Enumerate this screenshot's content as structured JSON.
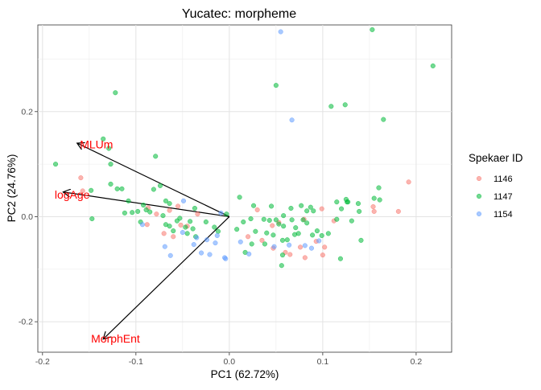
{
  "chart_data": {
    "type": "scatter",
    "title": "Yucatec: morpheme",
    "xlabel": "PC1 (62.72%)",
    "ylabel": "PC2 (24.76%)",
    "xlim": [
      -0.205,
      0.238
    ],
    "ylim": [
      -0.258,
      0.365
    ],
    "xticks": [
      -0.2,
      -0.1,
      0.0,
      0.1,
      0.2
    ],
    "xtick_labels": [
      "-0.2",
      "-0.1",
      "0.0",
      "0.1",
      "0.2"
    ],
    "yticks": [
      -0.2,
      0.0,
      0.2
    ],
    "ytick_labels": [
      "-0.2",
      "0.0",
      "0.2"
    ],
    "grid": true,
    "legend": {
      "title": "Spekaer ID",
      "position": "right",
      "entries": [
        "1146",
        "1147",
        "1154"
      ]
    },
    "series": [
      {
        "name": "1146",
        "color": "#F8766D",
        "points": [
          [
            -0.159,
            0.074
          ],
          [
            -0.157,
            0.049
          ],
          [
            -0.087,
            0.017
          ],
          [
            -0.055,
            0.02
          ],
          [
            -0.088,
            -0.015
          ],
          [
            -0.078,
            0.005
          ],
          [
            -0.052,
            -0.016
          ],
          [
            -0.07,
            -0.032
          ],
          [
            -0.06,
            -0.038
          ],
          [
            -0.034,
            0.005
          ],
          [
            -0.045,
            -0.018
          ],
          [
            -0.064,
            0.012
          ],
          [
            0.03,
            0.013
          ],
          [
            0.046,
            -0.017
          ],
          [
            0.053,
            -0.011
          ],
          [
            0.08,
            -0.005
          ],
          [
            0.035,
            -0.045
          ],
          [
            0.06,
            -0.068
          ],
          [
            0.065,
            -0.072
          ],
          [
            0.076,
            -0.058
          ],
          [
            0.093,
            -0.047
          ],
          [
            0.102,
            -0.058
          ],
          [
            0.047,
            -0.06
          ],
          [
            0.02,
            -0.038
          ],
          [
            0.081,
            -0.078
          ],
          [
            0.1,
            -0.073
          ],
          [
            0.154,
            0.019
          ],
          [
            0.155,
            0.01
          ],
          [
            0.181,
            0.01
          ],
          [
            0.192,
            0.066
          ],
          [
            0.099,
            0.015
          ],
          [
            0.112,
            -0.008
          ]
        ]
      },
      {
        "name": "1147",
        "color": "#00BA38",
        "points": [
          [
            -0.186,
            0.1
          ],
          [
            -0.148,
            0.05
          ],
          [
            -0.147,
            -0.004
          ],
          [
            -0.135,
            0.148
          ],
          [
            -0.129,
            0.13
          ],
          [
            -0.127,
            0.1
          ],
          [
            -0.127,
            0.062
          ],
          [
            -0.122,
            0.236
          ],
          [
            -0.12,
            0.053
          ],
          [
            -0.115,
            0.053
          ],
          [
            -0.108,
            0.03
          ],
          [
            -0.112,
            0.007
          ],
          [
            -0.104,
            0.008
          ],
          [
            -0.098,
            0.01
          ],
          [
            -0.095,
            -0.01
          ],
          [
            -0.092,
            0.022
          ],
          [
            -0.089,
            0.013
          ],
          [
            -0.085,
            0.009
          ],
          [
            -0.081,
            0.052
          ],
          [
            -0.079,
            0.115
          ],
          [
            -0.074,
            0.059
          ],
          [
            -0.071,
            0.002
          ],
          [
            -0.068,
            -0.015
          ],
          [
            -0.064,
            -0.018
          ],
          [
            -0.064,
            0.025
          ],
          [
            -0.068,
            0.03
          ],
          [
            -0.06,
            -0.027
          ],
          [
            -0.056,
            -0.008
          ],
          [
            -0.053,
            -0.003
          ],
          [
            -0.047,
            -0.02
          ],
          [
            -0.045,
            -0.032
          ],
          [
            -0.042,
            -0.009
          ],
          [
            -0.039,
            -0.023
          ],
          [
            -0.037,
            0.016
          ],
          [
            -0.036,
            -0.038
          ],
          [
            -0.025,
            -0.01
          ],
          [
            -0.012,
            -0.028
          ],
          [
            -0.003,
            0.005
          ],
          [
            -0.016,
            -0.02
          ],
          [
            0.008,
            -0.024
          ],
          [
            0.011,
            0.037
          ],
          [
            0.015,
            -0.01
          ],
          [
            0.023,
            -0.004
          ],
          [
            0.028,
            -0.028
          ],
          [
            0.024,
            -0.052
          ],
          [
            0.037,
            -0.005
          ],
          [
            0.038,
            -0.052
          ],
          [
            0.04,
            -0.031
          ],
          [
            0.043,
            -0.007
          ],
          [
            0.05,
            -0.006
          ],
          [
            0.053,
            -0.014
          ],
          [
            0.057,
            -0.073
          ],
          [
            0.057,
            -0.045
          ],
          [
            0.058,
            -0.018
          ],
          [
            0.067,
            -0.006
          ],
          [
            0.07,
            -0.034
          ],
          [
            0.071,
            -0.021
          ],
          [
            0.079,
            -0.006
          ],
          [
            0.083,
            -0.012
          ],
          [
            0.087,
            0.018
          ],
          [
            0.089,
            -0.035
          ],
          [
            0.09,
            0.011
          ],
          [
            0.099,
            -0.036
          ],
          [
            0.106,
            -0.032
          ],
          [
            0.115,
            0.028
          ],
          [
            0.12,
            0.015
          ],
          [
            0.125,
            0.033
          ],
          [
            0.126,
            0.028
          ],
          [
            0.127,
            0.028
          ],
          [
            0.138,
            0.025
          ],
          [
            0.139,
            0.01
          ],
          [
            0.141,
            -0.045
          ],
          [
            0.155,
            0.035
          ],
          [
            0.16,
            0.055
          ],
          [
            0.165,
            0.185
          ],
          [
            0.161,
            0.032
          ],
          [
            0.119,
            -0.08
          ],
          [
            0.056,
            -0.093
          ],
          [
            0.05,
            0.25
          ],
          [
            0.109,
            0.21
          ],
          [
            0.124,
            0.213
          ],
          [
            0.153,
            0.356
          ],
          [
            0.218,
            0.287
          ],
          [
            0.115,
            -0.005
          ],
          [
            0.131,
            -0.008
          ],
          [
            0.017,
            -0.068
          ],
          [
            0.045,
            0.02
          ],
          [
            0.026,
            0.021
          ],
          [
            0.058,
            0.002
          ],
          [
            0.066,
            0.016
          ],
          [
            0.077,
            0.021
          ],
          [
            0.083,
            0.011
          ],
          [
            0.074,
            -0.032
          ],
          [
            0.094,
            -0.027
          ],
          [
            0.062,
            -0.044
          ],
          [
            0.047,
            -0.035
          ]
        ]
      },
      {
        "name": "1154",
        "color": "#619CFF",
        "points": [
          [
            -0.093,
            -0.015
          ],
          [
            -0.069,
            -0.057
          ],
          [
            -0.063,
            -0.074
          ],
          [
            -0.05,
            -0.03
          ],
          [
            -0.049,
            0.03
          ],
          [
            -0.035,
            -0.04
          ],
          [
            -0.024,
            -0.044
          ],
          [
            -0.03,
            -0.069
          ],
          [
            -0.038,
            -0.053
          ],
          [
            -0.021,
            -0.072
          ],
          [
            -0.015,
            -0.05
          ],
          [
            -0.013,
            -0.036
          ],
          [
            -0.009,
            0.007
          ],
          [
            -0.005,
            -0.078
          ],
          [
            -0.004,
            -0.08
          ],
          [
            0.012,
            -0.048
          ],
          [
            0.021,
            -0.071
          ],
          [
            0.048,
            -0.057
          ],
          [
            0.064,
            -0.054
          ],
          [
            0.067,
            0.184
          ],
          [
            0.055,
            0.352
          ],
          [
            0.096,
            -0.046
          ],
          [
            0.088,
            -0.06
          ],
          [
            0.081,
            -0.055
          ]
        ]
      }
    ],
    "biplot_vectors": [
      {
        "label": "MLUm",
        "x": -0.163,
        "y": 0.14,
        "label_x": -0.16,
        "label_y": 0.138
      },
      {
        "label": "logAge",
        "x": -0.178,
        "y": 0.047,
        "label_x": -0.187,
        "label_y": 0.042
      },
      {
        "label": "MorphEnt",
        "x": -0.135,
        "y": -0.233,
        "label_x": -0.148,
        "label_y": -0.232
      }
    ]
  }
}
